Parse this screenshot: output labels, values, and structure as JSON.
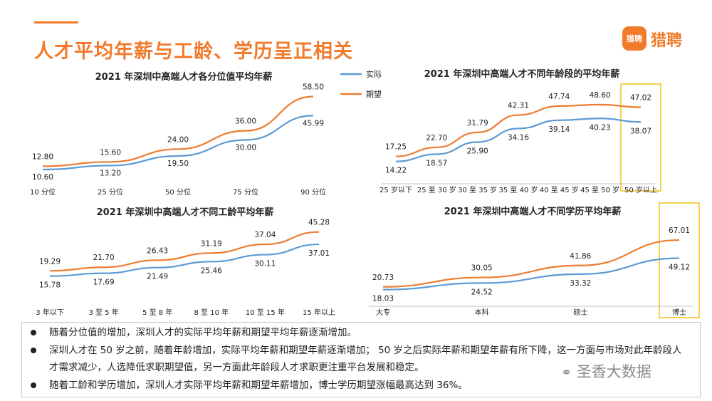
{
  "header": {
    "title": "人才平均年薪与工龄、学历呈正相关"
  },
  "logo": {
    "badge_text": "猎聘",
    "text": "猎聘"
  },
  "legend": {
    "actual": "实际",
    "expected": "期望"
  },
  "colors": {
    "actual": "#5b9bd5",
    "expected": "#ed7d31",
    "accent": "#f27a2b",
    "highlight": "#f0c419"
  },
  "chart_data": [
    {
      "type": "line",
      "title": "2021 年深圳中高端人才各分位值平均年薪",
      "categories": [
        "10 分位",
        "25 分位",
        "50 分位",
        "75 分位",
        "90 分位"
      ],
      "series": [
        {
          "name": "实际",
          "values": [
            10.6,
            13.2,
            19.5,
            30.0,
            45.99
          ],
          "labels": [
            "10.60",
            "13.20",
            "19.50",
            "30.00",
            "45.99"
          ]
        },
        {
          "name": "期望",
          "values": [
            12.8,
            15.6,
            24.0,
            36.0,
            58.5
          ],
          "labels": [
            "12.80",
            "15.60",
            "24.00",
            "36.00",
            "58.50"
          ]
        }
      ],
      "ylim": [
        5,
        62
      ],
      "legend": "top-right",
      "grid": false
    },
    {
      "type": "line",
      "title": "2021 年深圳中高端人才不同年龄段的平均年薪",
      "categories": [
        "25 岁以下",
        "25 至 30 岁",
        "30 至 35 岁",
        "35 至 40 岁",
        "40 至 45 岁",
        "45 至 50 岁",
        "50 岁以上"
      ],
      "series": [
        {
          "name": "实际",
          "values": [
            14.22,
            18.57,
            25.9,
            34.16,
            39.14,
            40.23,
            38.07
          ],
          "labels": [
            "14.22",
            "18.57",
            "25.90",
            "34.16",
            "39.14",
            "40.23",
            "38.07"
          ]
        },
        {
          "name": "期望",
          "values": [
            17.25,
            22.7,
            31.79,
            42.31,
            47.74,
            48.6,
            47.02
          ],
          "labels": [
            "17.25",
            "22.70",
            "31.79",
            "42.31",
            "47.74",
            "48.60",
            "47.02"
          ]
        }
      ],
      "ylim": [
        5,
        55
      ],
      "highlight_category": "50 岁以上",
      "grid": false
    },
    {
      "type": "line",
      "title": "2021 年深圳中高端人才不同工龄平均年薪",
      "categories": [
        "3 年以下",
        "3 至 5 年",
        "5 至 8 年",
        "8 至 10 年",
        "10 至 15 年",
        "15 年以上"
      ],
      "series": [
        {
          "name": "实际",
          "values": [
            15.78,
            17.69,
            21.49,
            25.46,
            30.11,
            37.01
          ],
          "labels": [
            "15.78",
            "17.69",
            "21.49",
            "25.46",
            "30.11",
            "37.01"
          ]
        },
        {
          "name": "期望",
          "values": [
            19.29,
            21.7,
            26.43,
            31.19,
            37.04,
            45.28
          ],
          "labels": [
            "19.29",
            "21.70",
            "26.43",
            "31.19",
            "37.04",
            "45.28"
          ]
        }
      ],
      "ylim": [
        8,
        48
      ],
      "grid": false
    },
    {
      "type": "line",
      "title": "2021 年深圳中高端人才不同学历平均年薪",
      "categories": [
        "大专",
        "本科",
        "硕士",
        "博士"
      ],
      "series": [
        {
          "name": "实际",
          "values": [
            18.03,
            24.52,
            33.32,
            49.12
          ],
          "labels": [
            "18.03",
            "24.52",
            "33.32",
            "49.12"
          ]
        },
        {
          "name": "期望",
          "values": [
            20.73,
            30.05,
            41.86,
            67.01
          ],
          "labels": [
            "20.73",
            "30.05",
            "41.86",
            "67.01"
          ]
        }
      ],
      "ylim": [
        10,
        72
      ],
      "highlight_category": "博士",
      "grid": false
    }
  ],
  "notes": [
    "随着分位值的增加，深圳人才的实际平均年薪和期望平均年薪逐渐增加。",
    "深圳人才在 50 岁之前，随着年龄增加，实际平均年薪和期望年薪逐渐增加； 50 岁之后实际年薪和期望年薪有所下降，这一方面与市场对此年龄段人才需求减少，人选降低求职期望值，另一方面此年龄段人才求职更注重平台发展和稳定。",
    "随着工龄和学历增加，深圳人才实际平均年薪和期望年薪增加，博士学历期望涨幅最高达到 36%。"
  ],
  "watermark": "圣香大数据"
}
